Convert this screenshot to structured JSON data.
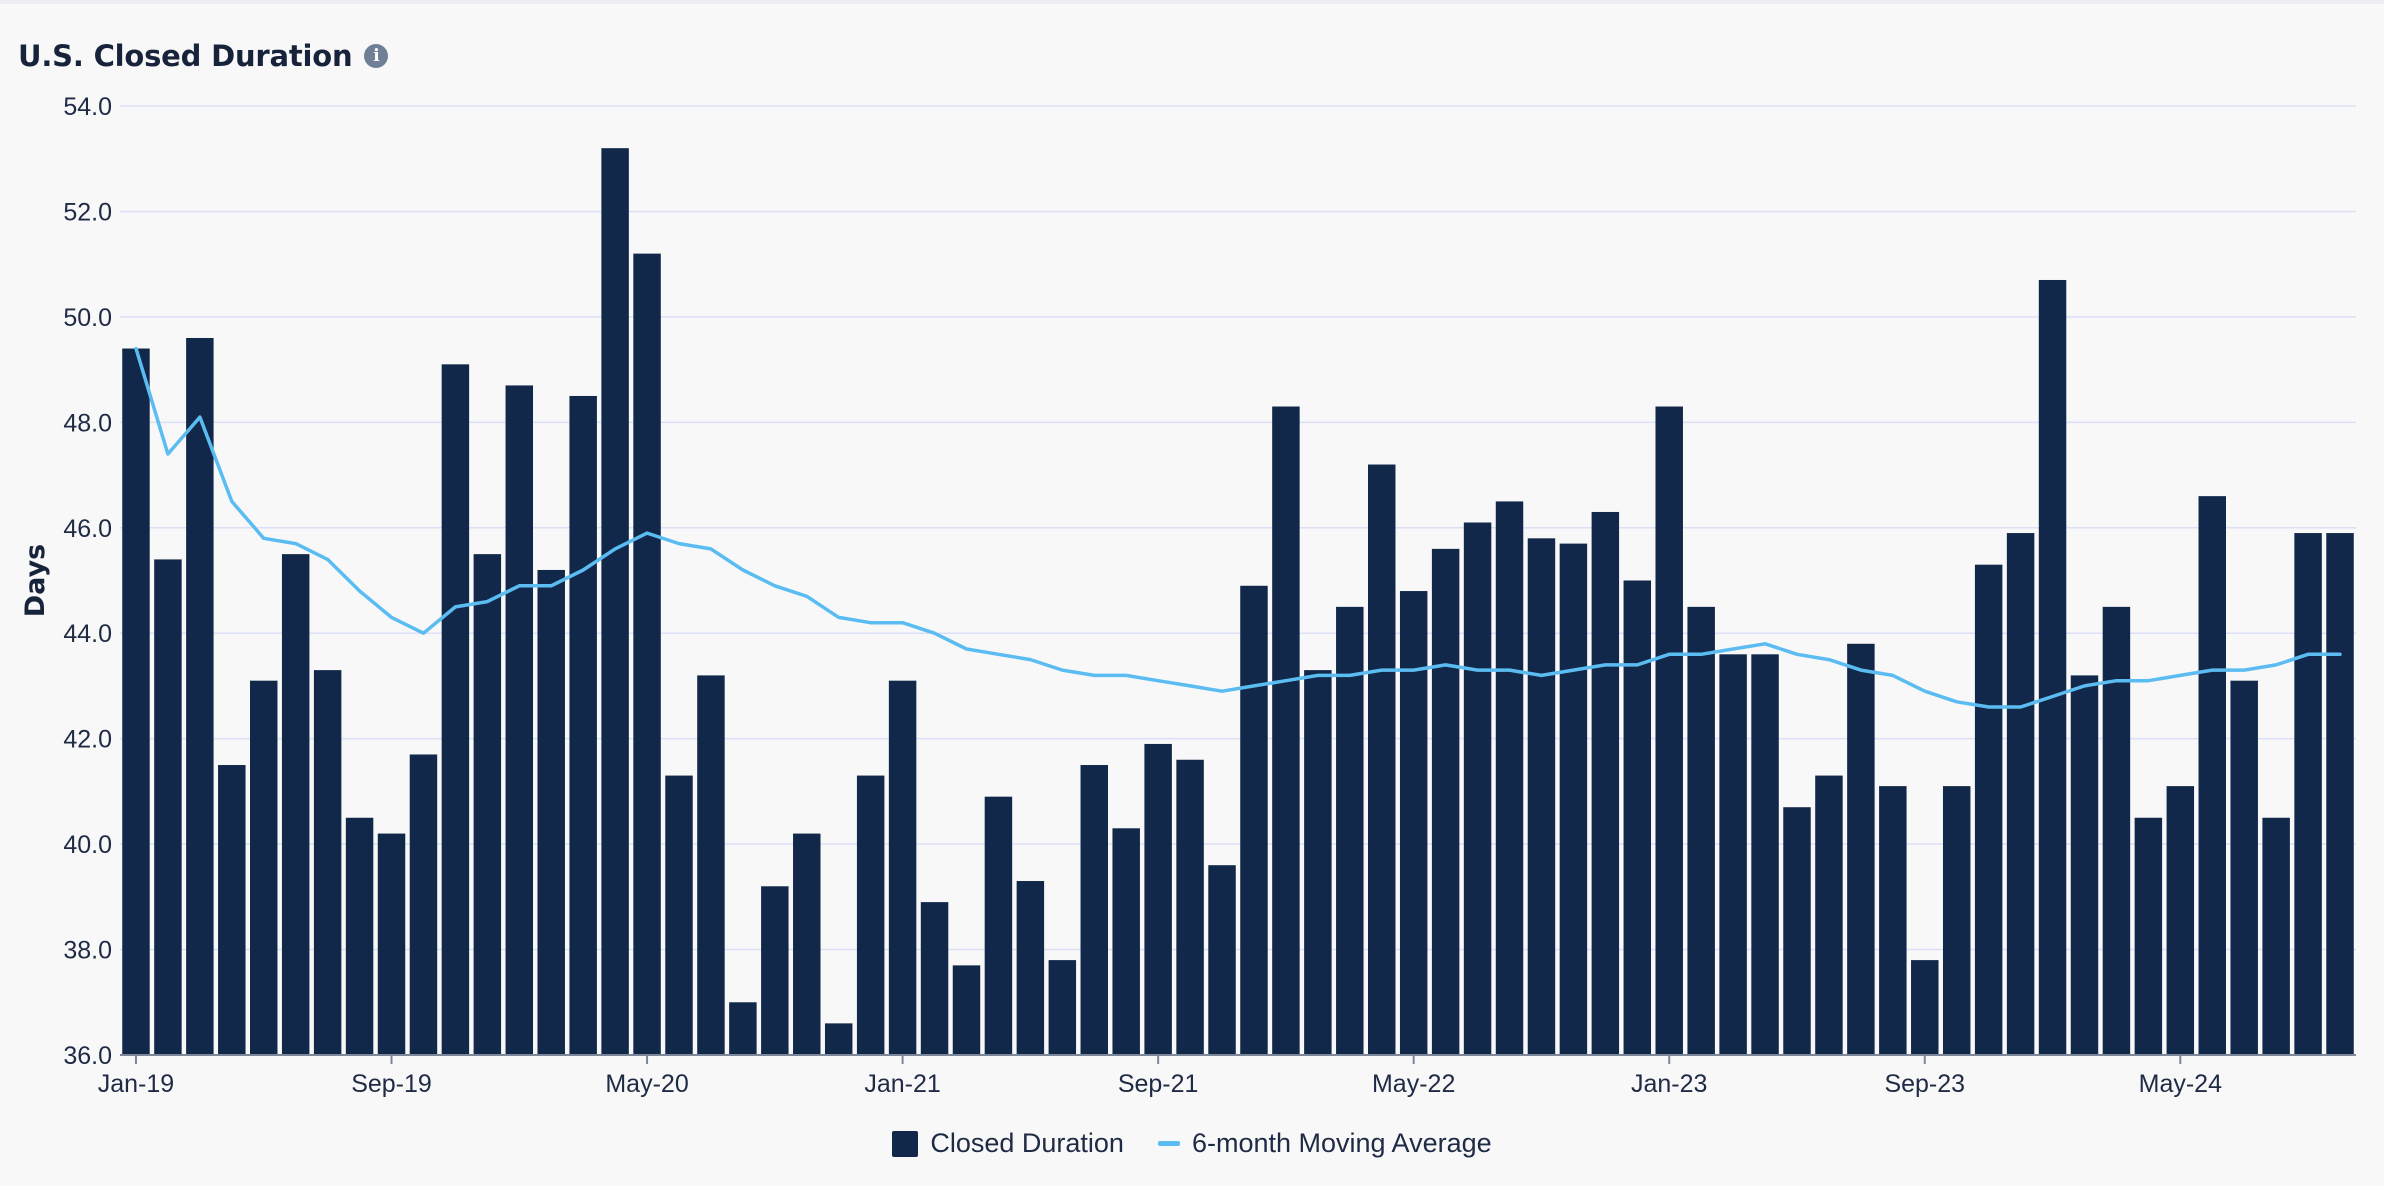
{
  "header": {
    "title": "U.S. Closed Duration",
    "info_icon": "info-icon"
  },
  "colors": {
    "bar": "#11284a",
    "line": "#5bbcf2",
    "grid": "#dcdff6",
    "axis": "#7d8799"
  },
  "chart_data": {
    "type": "bar",
    "title": "U.S. Closed Duration",
    "ylabel": "Days",
    "xlabel": "",
    "ylim": [
      36.0,
      54.0
    ],
    "yticks": [
      36.0,
      38.0,
      40.0,
      42.0,
      44.0,
      46.0,
      48.0,
      50.0,
      52.0,
      54.0
    ],
    "grid": true,
    "legend_placement": "bottom-center",
    "categories": [
      "Jan-19",
      "Feb-19",
      "Mar-19",
      "Apr-19",
      "May-19",
      "Jun-19",
      "Jul-19",
      "Aug-19",
      "Sep-19",
      "Oct-19",
      "Nov-19",
      "Dec-19",
      "Jan-20",
      "Feb-20",
      "Mar-20",
      "Apr-20",
      "May-20",
      "Jun-20",
      "Jul-20",
      "Aug-20",
      "Sep-20",
      "Oct-20",
      "Nov-20",
      "Dec-20",
      "Jan-21",
      "Feb-21",
      "Mar-21",
      "Apr-21",
      "May-21",
      "Jun-21",
      "Jul-21",
      "Aug-21",
      "Sep-21",
      "Oct-21",
      "Nov-21",
      "Dec-21",
      "Jan-22",
      "Feb-22",
      "Mar-22",
      "Apr-22",
      "May-22",
      "Jun-22",
      "Jul-22",
      "Aug-22",
      "Sep-22",
      "Oct-22",
      "Nov-22",
      "Dec-22",
      "Jan-23",
      "Feb-23",
      "Mar-23",
      "Apr-23",
      "May-23",
      "Jun-23",
      "Jul-23",
      "Aug-23",
      "Sep-23",
      "Oct-23",
      "Nov-23",
      "Dec-23",
      "Jan-24",
      "Feb-24",
      "Mar-24",
      "Apr-24",
      "May-24",
      "Jun-24",
      "Jul-24",
      "Aug-24",
      "Sep-24",
      "Oct-24"
    ],
    "xtick_labels": [
      "Jan-19",
      "Sep-19",
      "May-20",
      "Jan-21",
      "Sep-21",
      "May-22",
      "Jan-23",
      "Sep-23",
      "May-24"
    ],
    "series": [
      {
        "name": "Closed Duration",
        "type": "bar",
        "values": [
          49.4,
          45.4,
          49.6,
          41.5,
          43.1,
          45.5,
          43.3,
          40.5,
          40.2,
          41.7,
          49.1,
          45.5,
          48.7,
          45.2,
          48.5,
          53.2,
          51.2,
          41.3,
          43.2,
          37.0,
          39.2,
          40.2,
          36.6,
          41.3,
          43.1,
          38.9,
          37.7,
          40.9,
          39.3,
          37.8,
          41.5,
          40.3,
          41.9,
          41.6,
          39.6,
          44.9,
          48.3,
          43.3,
          44.5,
          47.2,
          44.8,
          45.6,
          46.1,
          46.5,
          45.8,
          45.7,
          46.3,
          45.0,
          48.3,
          44.5,
          43.6,
          43.6,
          40.7,
          41.3,
          43.8,
          41.1,
          37.8,
          41.1,
          45.3,
          45.9,
          50.7,
          43.2,
          44.5,
          40.5,
          41.1,
          46.6,
          43.1,
          40.5,
          45.9,
          45.9
        ]
      },
      {
        "name": "6-month Moving Average",
        "type": "line",
        "values": [
          49.4,
          47.4,
          48.1,
          46.5,
          45.8,
          45.7,
          45.4,
          44.8,
          44.3,
          44.0,
          44.5,
          44.6,
          44.9,
          44.9,
          45.2,
          45.6,
          45.9,
          45.7,
          45.6,
          45.2,
          44.9,
          44.7,
          44.3,
          44.2,
          44.2,
          44.0,
          43.7,
          43.6,
          43.5,
          43.3,
          43.2,
          43.2,
          43.1,
          43.0,
          42.9,
          43.0,
          43.1,
          43.2,
          43.2,
          43.3,
          43.3,
          43.4,
          43.3,
          43.3,
          43.2,
          43.3,
          43.4,
          43.4,
          43.6,
          43.6,
          43.7,
          43.8,
          43.6,
          43.5,
          43.3,
          43.2,
          42.9,
          42.7,
          42.6,
          42.6,
          42.8,
          43.0,
          43.1,
          43.1,
          43.2,
          43.3,
          43.3,
          43.4,
          43.6,
          43.6
        ]
      }
    ]
  },
  "legend": {
    "items": [
      {
        "label": "Closed Duration",
        "swatch": "box"
      },
      {
        "label": "6-month Moving Average",
        "swatch": "line"
      }
    ]
  }
}
